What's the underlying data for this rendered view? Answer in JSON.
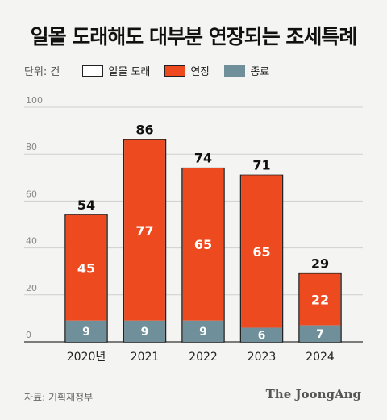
{
  "title": "일몰 도래해도 대부분 연장되는 조세특례",
  "unit_label": "단위: 건",
  "legend": [
    {
      "label": "일몰 도래",
      "color": "#ffffff",
      "border": "#222222"
    },
    {
      "label": "연장",
      "color": "#ee4a1f",
      "border": "#222222"
    },
    {
      "label": "종료",
      "color": "#6f8f9a",
      "border": "#6f8f9a"
    }
  ],
  "source": "자료: 기획재정부",
  "brand": "The JoongAng",
  "chart_data": {
    "type": "bar",
    "stacked": true,
    "categories": [
      "2020년",
      "2021",
      "2022",
      "2023",
      "2024"
    ],
    "series": [
      {
        "name": "종료",
        "values": [
          9,
          9,
          9,
          6,
          7
        ],
        "color": "#6f8f9a"
      },
      {
        "name": "연장",
        "values": [
          45,
          77,
          65,
          65,
          22
        ],
        "color": "#ee4a1f"
      }
    ],
    "totals": [
      54,
      86,
      74,
      71,
      29
    ],
    "total_series_name": "일몰 도래",
    "ylim": [
      0,
      100
    ],
    "yticks": [
      0,
      20,
      40,
      60,
      80,
      100
    ],
    "grid": true
  }
}
